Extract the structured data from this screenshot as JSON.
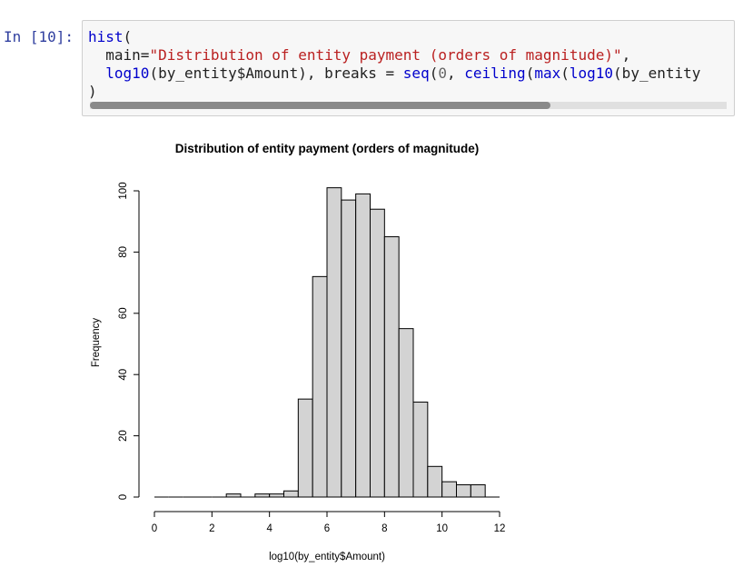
{
  "cell": {
    "prompt": "In [10]:",
    "code_lines": [
      [
        {
          "t": "hist",
          "c": "kw-fn"
        },
        {
          "t": "(",
          "c": ""
        }
      ],
      [
        {
          "t": "  main=",
          "c": ""
        },
        {
          "t": "\"Distribution of entity payment (orders of magnitude)\"",
          "c": "str"
        },
        {
          "t": ",",
          "c": ""
        }
      ],
      [
        {
          "t": "  ",
          "c": ""
        },
        {
          "t": "log10",
          "c": "kw-fn"
        },
        {
          "t": "(by_entity$Amount), breaks = ",
          "c": ""
        },
        {
          "t": "seq",
          "c": "kw-fn"
        },
        {
          "t": "(",
          "c": ""
        },
        {
          "t": "0",
          "c": "num"
        },
        {
          "t": ", ",
          "c": ""
        },
        {
          "t": "ceiling",
          "c": "kw-fn"
        },
        {
          "t": "(",
          "c": ""
        },
        {
          "t": "max",
          "c": "kw-fn"
        },
        {
          "t": "(",
          "c": ""
        },
        {
          "t": "log10",
          "c": "kw-fn"
        },
        {
          "t": "(by_entity",
          "c": ""
        }
      ],
      [
        {
          "t": ")",
          "c": ""
        }
      ]
    ]
  },
  "chart_data": {
    "type": "bar",
    "title": "Distribution of entity payment (orders of magnitude)",
    "xlabel": "log10(by_entity$Amount)",
    "ylabel": "Frequency",
    "bin_width": 0.5,
    "bin_starts": [
      0,
      0.5,
      1,
      1.5,
      2,
      2.5,
      3,
      3.5,
      4,
      4.5,
      5,
      5.5,
      6,
      6.5,
      7,
      7.5,
      8,
      8.5,
      9,
      9.5,
      10,
      10.5,
      11,
      11.5
    ],
    "values": [
      0,
      0,
      0,
      0,
      0,
      1,
      0,
      1,
      1,
      2,
      32,
      72,
      101,
      97,
      99,
      94,
      85,
      55,
      31,
      10,
      5,
      4,
      4,
      0
    ],
    "xlim": [
      0,
      12
    ],
    "ylim": [
      0,
      100
    ],
    "x_ticks": [
      "0",
      "2",
      "4",
      "6",
      "8",
      "10",
      "12"
    ],
    "y_ticks": [
      "0",
      "20",
      "40",
      "60",
      "80",
      "100"
    ],
    "fill_color": "#d3d3d3",
    "grid": false
  }
}
